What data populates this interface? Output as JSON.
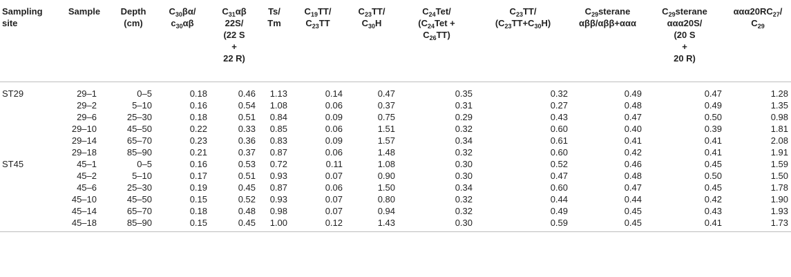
{
  "table": {
    "headers": [
      "Sampling site",
      "Sample",
      "Depth (cm)",
      "C30βα/ c30αβ",
      "C31αβ 22S/ (22 S + 22 R)",
      "Ts/ Tm",
      "C19TT/ C23TT",
      "C23TT/ C30H",
      "C24Tet/ (C24Tet + C26TT)",
      "C23TT/ (C23TT+C30H)",
      "C29sterane αββ/αββ+ααα",
      "C29sterane ααα20S/ (20 S + 20 R)",
      "ααα20RC27/ C29"
    ],
    "groups": [
      {
        "site": "ST29",
        "rows": [
          [
            "29–1",
            "0–5",
            "0.18",
            "0.46",
            "1.13",
            "0.14",
            "0.47",
            "0.35",
            "0.32",
            "0.49",
            "0.47",
            "1.28"
          ],
          [
            "29–2",
            "5–10",
            "0.16",
            "0.54",
            "1.08",
            "0.06",
            "0.37",
            "0.31",
            "0.27",
            "0.48",
            "0.49",
            "1.35"
          ],
          [
            "29–6",
            "25–30",
            "0.18",
            "0.51",
            "0.84",
            "0.09",
            "0.75",
            "0.29",
            "0.43",
            "0.47",
            "0.50",
            "0.98"
          ],
          [
            "29–10",
            "45–50",
            "0.22",
            "0.33",
            "0.85",
            "0.06",
            "1.51",
            "0.32",
            "0.60",
            "0.40",
            "0.39",
            "1.81"
          ],
          [
            "29–14",
            "65–70",
            "0.23",
            "0.36",
            "0.83",
            "0.09",
            "1.57",
            "0.34",
            "0.61",
            "0.41",
            "0.41",
            "2.08"
          ],
          [
            "29–18",
            "85–90",
            "0.21",
            "0.37",
            "0.87",
            "0.06",
            "1.48",
            "0.32",
            "0.60",
            "0.42",
            "0.41",
            "1.91"
          ]
        ]
      },
      {
        "site": "ST45",
        "rows": [
          [
            "45–1",
            "0–5",
            "0.16",
            "0.53",
            "0.72",
            "0.11",
            "1.08",
            "0.30",
            "0.52",
            "0.46",
            "0.45",
            "1.59"
          ],
          [
            "45–2",
            "5–10",
            "0.17",
            "0.51",
            "0.93",
            "0.07",
            "0.90",
            "0.30",
            "0.47",
            "0.48",
            "0.50",
            "1.50"
          ],
          [
            "45–6",
            "25–30",
            "0.19",
            "0.45",
            "0.87",
            "0.06",
            "1.50",
            "0.34",
            "0.60",
            "0.47",
            "0.45",
            "1.78"
          ],
          [
            "45–10",
            "45–50",
            "0.15",
            "0.52",
            "0.93",
            "0.07",
            "0.80",
            "0.32",
            "0.44",
            "0.44",
            "0.42",
            "1.90"
          ],
          [
            "45–14",
            "65–70",
            "0.18",
            "0.48",
            "0.98",
            "0.07",
            "0.94",
            "0.32",
            "0.49",
            "0.45",
            "0.43",
            "1.93"
          ],
          [
            "45–18",
            "85–90",
            "0.15",
            "0.45",
            "1.00",
            "0.12",
            "1.43",
            "0.30",
            "0.59",
            "0.45",
            "0.41",
            "1.73"
          ]
        ]
      }
    ]
  }
}
